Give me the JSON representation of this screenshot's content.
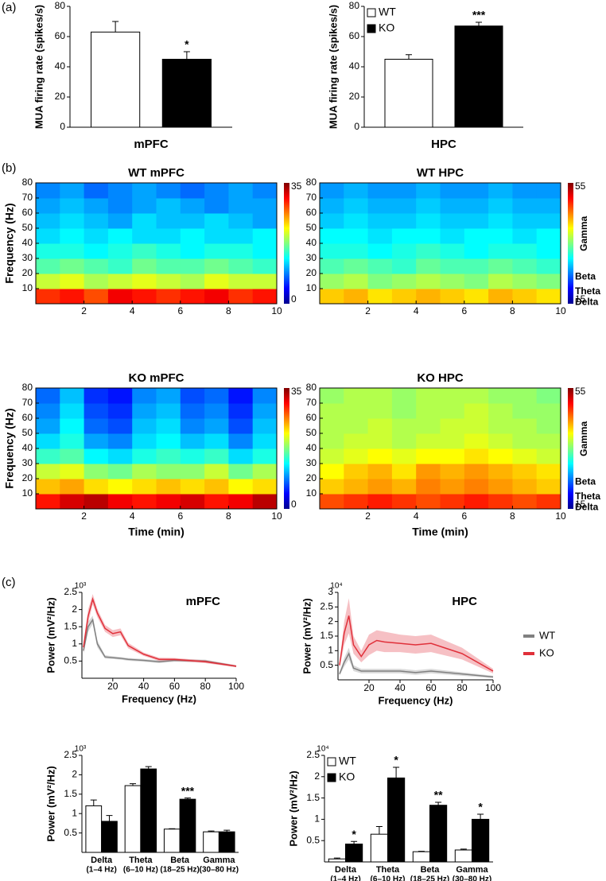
{
  "panel_labels": [
    "(a)",
    "(b)",
    "(c)"
  ],
  "chart_data": [
    {
      "type": "bar",
      "ylabel": "MUA firing rate (spikes/s)",
      "xlabel": "mPFC",
      "ylim": [
        0,
        80
      ],
      "yticks": [
        0,
        20,
        40,
        60,
        80
      ],
      "series": [
        {
          "color": "#ffffff",
          "values": [
            63
          ],
          "errors": [
            7
          ]
        },
        {
          "color": "#000000",
          "values": [
            45
          ],
          "errors": [
            5
          ],
          "annotations": [
            "*"
          ]
        }
      ]
    },
    {
      "type": "bar",
      "ylabel": "MUA firing rate (spikes/s)",
      "xlabel": "HPC",
      "ylim": [
        0,
        80
      ],
      "yticks": [
        0,
        20,
        40,
        60,
        80
      ],
      "legend": "upper-left",
      "series": [
        {
          "name": "WT",
          "color": "#ffffff",
          "values": [
            45
          ],
          "errors": [
            3
          ]
        },
        {
          "name": "KO",
          "color": "#000000",
          "values": [
            67
          ],
          "errors": [
            2.5
          ],
          "annotations": [
            "***"
          ]
        }
      ]
    },
    {
      "type": "heatmap",
      "title": "WT mPFC",
      "ylabel": "Frequency (Hz)",
      "xlim": [
        0,
        10
      ],
      "ylim": [
        0,
        80
      ],
      "xticks": [
        2,
        4,
        6,
        8,
        10
      ],
      "yticks": [
        10,
        20,
        30,
        40,
        50,
        60,
        70,
        80
      ],
      "zlim": [
        0,
        35
      ],
      "zticks": [
        0,
        35
      ],
      "values": [
        [
          29,
          30,
          28,
          31,
          30,
          29,
          30,
          31,
          29,
          30
        ],
        [
          20,
          21,
          19,
          20,
          21,
          20,
          19,
          21,
          20,
          20
        ],
        [
          16,
          17,
          16,
          15,
          17,
          16,
          16,
          17,
          16,
          15
        ],
        [
          14,
          14,
          13,
          14,
          15,
          14,
          13,
          14,
          14,
          13
        ],
        [
          12,
          13,
          12,
          13,
          12,
          12,
          13,
          12,
          12,
          13
        ],
        [
          11,
          12,
          11,
          10,
          12,
          11,
          11,
          12,
          11,
          10
        ],
        [
          10,
          11,
          10,
          9,
          10,
          11,
          10,
          9,
          10,
          10
        ],
        [
          9,
          10,
          8,
          9,
          10,
          9,
          8,
          9,
          10,
          9
        ]
      ]
    },
    {
      "type": "heatmap",
      "title": "WT HPC",
      "xlim": [
        0,
        10
      ],
      "ylim": [
        0,
        80
      ],
      "xticks": [
        2,
        4,
        6,
        8,
        10
      ],
      "yticks": [
        10,
        20,
        30,
        40,
        50,
        60,
        70,
        80
      ],
      "zlim": [
        15,
        55
      ],
      "zticks": [
        15,
        55
      ],
      "colorbar_labels": [
        "Gamma",
        "Beta",
        "Theta",
        "Delta"
      ],
      "values": [
        [
          42,
          43,
          41,
          42,
          43,
          42,
          41,
          43,
          42,
          41
        ],
        [
          36,
          37,
          35,
          36,
          37,
          36,
          35,
          37,
          36,
          35
        ],
        [
          33,
          34,
          33,
          32,
          34,
          33,
          33,
          34,
          33,
          32
        ],
        [
          31,
          31,
          30,
          31,
          32,
          31,
          30,
          31,
          31,
          30
        ],
        [
          30,
          30,
          29,
          30,
          30,
          29,
          30,
          30,
          29,
          30
        ],
        [
          28,
          29,
          28,
          28,
          29,
          28,
          28,
          29,
          28,
          28
        ],
        [
          27,
          28,
          27,
          27,
          28,
          27,
          27,
          28,
          27,
          27
        ],
        [
          26,
          27,
          26,
          26,
          27,
          26,
          26,
          27,
          26,
          26
        ]
      ]
    },
    {
      "type": "heatmap",
      "title": "KO mPFC",
      "ylabel": "Frequency (Hz)",
      "xlabel": "Time (min)",
      "xlim": [
        0,
        10
      ],
      "ylim": [
        0,
        80
      ],
      "xticks": [
        2,
        4,
        6,
        8,
        10
      ],
      "yticks": [
        10,
        20,
        30,
        40,
        50,
        60,
        70,
        80
      ],
      "zlim": [
        0,
        35
      ],
      "zticks": [
        0,
        35
      ],
      "values": [
        [
          30,
          32,
          33,
          31,
          30,
          31,
          32,
          30,
          31,
          33
        ],
        [
          24,
          25,
          23,
          22,
          23,
          24,
          23,
          24,
          22,
          23
        ],
        [
          20,
          21,
          18,
          17,
          19,
          18,
          18,
          20,
          17,
          19
        ],
        [
          15,
          16,
          13,
          12,
          14,
          15,
          14,
          15,
          12,
          14
        ],
        [
          12,
          14,
          10,
          9,
          12,
          13,
          11,
          12,
          9,
          12
        ],
        [
          10,
          13,
          8,
          7,
          11,
          12,
          9,
          10,
          7,
          11
        ],
        [
          9,
          12,
          7,
          6,
          10,
          11,
          8,
          9,
          6,
          10
        ],
        [
          8,
          11,
          6,
          5,
          9,
          10,
          7,
          8,
          5,
          9
        ]
      ]
    },
    {
      "type": "heatmap",
      "title": "KO HPC",
      "xlabel": "Time (min)",
      "xlim": [
        0,
        10
      ],
      "ylim": [
        0,
        80
      ],
      "xticks": [
        2,
        4,
        6,
        8,
        10
      ],
      "yticks": [
        10,
        20,
        30,
        40,
        50,
        60,
        70,
        80
      ],
      "zlim": [
        15,
        55
      ],
      "zticks": [
        15,
        55
      ],
      "colorbar_labels": [
        "Gamma",
        "Beta",
        "Theta",
        "Delta"
      ],
      "values": [
        [
          47,
          48,
          49,
          48,
          47,
          48,
          49,
          48,
          47,
          48
        ],
        [
          42,
          43,
          44,
          43,
          45,
          44,
          45,
          44,
          43,
          42
        ],
        [
          40,
          42,
          43,
          41,
          44,
          43,
          44,
          43,
          42,
          41
        ],
        [
          38,
          39,
          40,
          39,
          40,
          40,
          41,
          40,
          39,
          38
        ],
        [
          37,
          38,
          38,
          37,
          38,
          38,
          39,
          38,
          37,
          37
        ],
        [
          37,
          37,
          38,
          37,
          37,
          38,
          38,
          37,
          37,
          36
        ],
        [
          37,
          37,
          37,
          36,
          37,
          37,
          38,
          37,
          36,
          36
        ],
        [
          36,
          37,
          37,
          36,
          37,
          37,
          37,
          36,
          36,
          35
        ]
      ]
    },
    {
      "type": "line",
      "title": "mPFC",
      "ylabel": "Power (mV²/Hz)",
      "xlabel": "Frequency (Hz)",
      "y_scale": "10³",
      "xlim": [
        0,
        100
      ],
      "ylim": [
        0,
        2.5
      ],
      "xticks": [
        20,
        40,
        60,
        80,
        100
      ],
      "yticks": [
        0.5,
        1,
        1.5,
        2,
        2.5
      ],
      "x": [
        1,
        4,
        7,
        10,
        15,
        20,
        25,
        30,
        40,
        50,
        60,
        80,
        100
      ],
      "series": [
        {
          "color": "#808080",
          "values": [
            0.8,
            1.5,
            1.7,
            1.0,
            0.62,
            0.6,
            0.58,
            0.55,
            0.52,
            0.48,
            0.52,
            0.5,
            0.35
          ],
          "errors": [
            0.1,
            0.15,
            0.12,
            0.1,
            0.05,
            0.04,
            0.04,
            0.04,
            0.04,
            0.04,
            0.04,
            0.04,
            0.03
          ]
        },
        {
          "color": "#e0303a",
          "values": [
            0.9,
            1.8,
            2.3,
            1.9,
            1.45,
            1.3,
            1.35,
            0.95,
            0.7,
            0.55,
            0.55,
            0.48,
            0.35
          ],
          "errors": [
            0.12,
            0.2,
            0.15,
            0.12,
            0.1,
            0.1,
            0.1,
            0.08,
            0.05,
            0.05,
            0.04,
            0.04,
            0.03
          ]
        }
      ]
    },
    {
      "type": "line",
      "title": "HPC",
      "ylabel": "Power (mV²/Hz)",
      "xlabel": "Frequency (Hz)",
      "y_scale": "10⁴",
      "xlim": [
        0,
        100
      ],
      "ylim": [
        0,
        3
      ],
      "xticks": [
        20,
        40,
        60,
        80,
        100
      ],
      "yticks": [
        0.5,
        1,
        1.5,
        2,
        2.5,
        3
      ],
      "legend": "right",
      "x": [
        1,
        4,
        7,
        10,
        15,
        20,
        25,
        30,
        40,
        50,
        60,
        80,
        100
      ],
      "series": [
        {
          "name": "WT",
          "color": "#808080",
          "values": [
            0.2,
            0.6,
            0.9,
            0.4,
            0.3,
            0.3,
            0.3,
            0.3,
            0.3,
            0.25,
            0.3,
            0.2,
            0.1
          ],
          "errors": [
            0.05,
            0.15,
            0.2,
            0.1,
            0.08,
            0.08,
            0.08,
            0.08,
            0.08,
            0.08,
            0.08,
            0.06,
            0.04
          ]
        },
        {
          "name": "KO",
          "color": "#e0303a",
          "values": [
            0.5,
            1.6,
            2.2,
            1.2,
            0.8,
            1.2,
            1.35,
            1.3,
            1.25,
            1.2,
            1.25,
            0.9,
            0.3
          ],
          "errors": [
            0.1,
            0.4,
            0.6,
            0.3,
            0.2,
            0.35,
            0.35,
            0.35,
            0.3,
            0.3,
            0.3,
            0.2,
            0.08
          ]
        }
      ]
    },
    {
      "type": "bar",
      "ylabel": "Power (mV²/Hz)",
      "y_scale": "10³",
      "ylim": [
        0,
        2.5
      ],
      "yticks": [
        0.5,
        1,
        1.5,
        2,
        2.5
      ],
      "categories": [
        "Delta",
        "Theta",
        "Beta",
        "Gamma"
      ],
      "category_sublabels": [
        "(1–4 Hz)",
        "(6–10 Hz)",
        "(18–25 Hz)",
        "(30–80 Hz)"
      ],
      "series": [
        {
          "color": "#ffffff",
          "values": [
            1.2,
            1.72,
            0.6,
            0.53
          ],
          "errors": [
            0.15,
            0.05,
            0.01,
            0.02
          ]
        },
        {
          "color": "#000000",
          "values": [
            0.8,
            2.15,
            1.37,
            0.53
          ],
          "errors": [
            0.15,
            0.06,
            0.03,
            0.04
          ],
          "annotations": [
            null,
            null,
            "***",
            null
          ]
        }
      ]
    },
    {
      "type": "bar",
      "ylabel": "Power (mV²/Hz)",
      "y_scale": "10⁴",
      "ylim": [
        0,
        2.5
      ],
      "yticks": [
        0.5,
        1,
        1.5,
        2,
        2.5
      ],
      "legend": "upper-left",
      "categories": [
        "Delta",
        "Theta",
        "Beta",
        "Gamma"
      ],
      "category_sublabels": [
        "(1–4 Hz)",
        "(6–10 Hz)",
        "(18–25 Hz)",
        "(30–80 Hz)"
      ],
      "series": [
        {
          "name": "WT",
          "color": "#ffffff",
          "values": [
            0.07,
            0.65,
            0.24,
            0.28
          ],
          "errors": [
            0.02,
            0.18,
            0.01,
            0.02
          ]
        },
        {
          "name": "KO",
          "color": "#000000",
          "values": [
            0.42,
            1.97,
            1.33,
            1.0
          ],
          "errors": [
            0.06,
            0.25,
            0.07,
            0.12
          ],
          "annotations": [
            "*",
            "*",
            "**",
            "*"
          ]
        }
      ]
    }
  ]
}
